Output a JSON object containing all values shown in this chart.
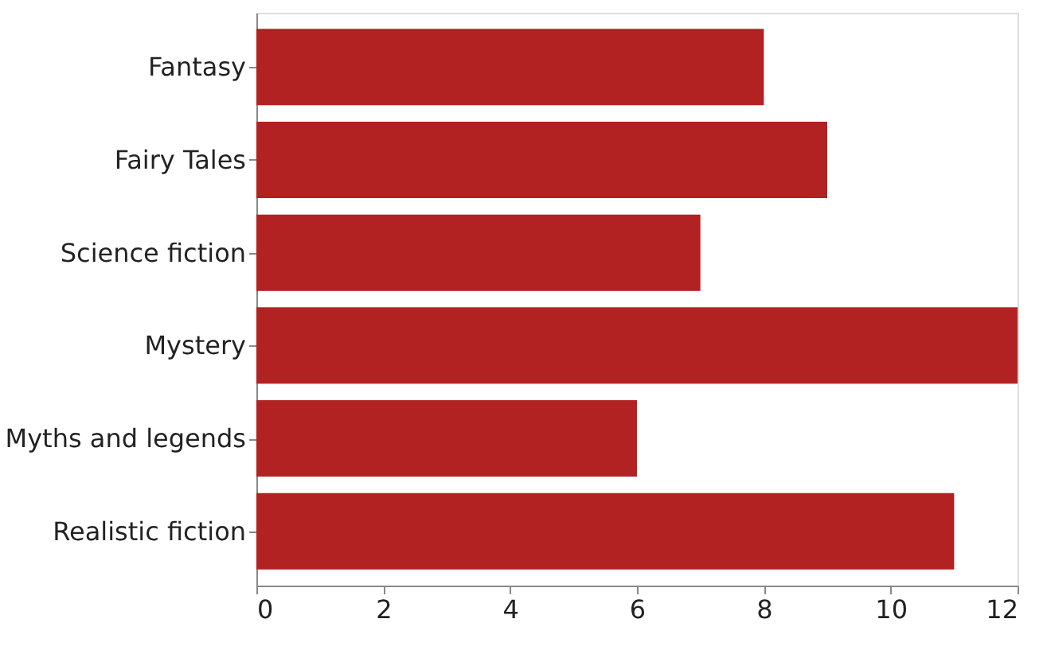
{
  "chart_data": {
    "type": "bar",
    "orientation": "horizontal",
    "categories": [
      "Fantasy",
      "Fairy Tales",
      "Science fiction",
      "Mystery",
      "Myths and legends",
      "Realistic fiction"
    ],
    "values": [
      8,
      9,
      7,
      12,
      6,
      11
    ],
    "color": "#b22222",
    "xlim": [
      0,
      12
    ],
    "xticks": [
      0,
      2,
      4,
      6,
      8,
      10,
      12
    ],
    "grid": false
  }
}
